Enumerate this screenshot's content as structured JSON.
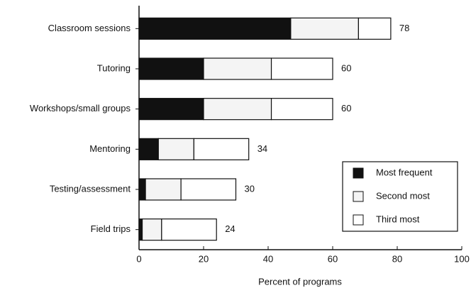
{
  "chart_data": {
    "type": "stacked_bar_horizontal",
    "categories": [
      "Classroom sessions",
      "Tutoring",
      "Workshops/small groups",
      "Mentoring",
      "Testing/assessment",
      "Field trips"
    ],
    "series": [
      {
        "name": "Most frequent",
        "color": "#111111",
        "values": [
          47,
          20,
          20,
          6,
          2,
          1
        ]
      },
      {
        "name": "Second most",
        "color": "#f4f4f4",
        "values": [
          21,
          21,
          21,
          11,
          11,
          6
        ]
      },
      {
        "name": "Third most",
        "color": "#ffffff",
        "values": [
          10,
          19,
          19,
          17,
          17,
          17
        ]
      }
    ],
    "totals": [
      78,
      60,
      60,
      34,
      30,
      24
    ],
    "xlabel": "Percent of programs",
    "xlim": [
      0,
      100
    ],
    "xticks": [
      0,
      20,
      40,
      60,
      80,
      100
    ],
    "legend": "lower right"
  }
}
